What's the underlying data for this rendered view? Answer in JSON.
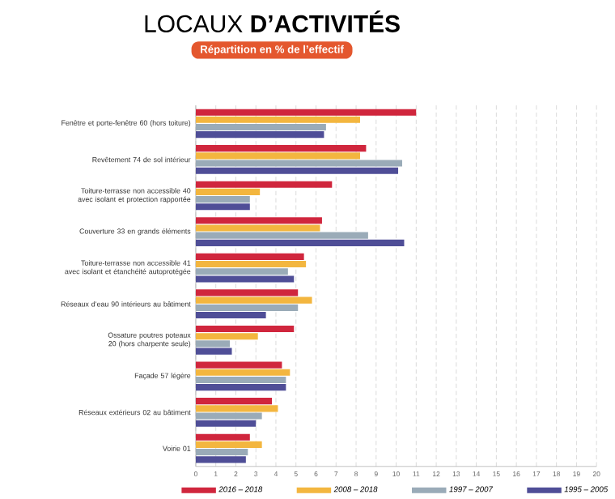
{
  "chart_data": {
    "type": "bar",
    "orientation": "horizontal",
    "title": "LOCAUX **D’ACTIVITÉS**",
    "subtitle": "Répartition en % de l’effectif",
    "categories": [
      "Fenêtre et porte-fenêtre 60 (hors toiture)",
      "Revêtement 74 de sol intérieur",
      "Toiture-terrasse non accessible 40 avec isolant et protection rapportée",
      "Couverture 33 en grands éléments",
      "Toiture-terrasse non accessible 41 avec isolant et étanchéité autoprotégée",
      "Réseaux d’eau 90 intérieurs au bâtiment",
      "Ossature poutres poteaux 20 (hors charpente seule)",
      "Façade 57 légère",
      "Réseaux extérieurs 02 au bâtiment",
      "Voirie 01"
    ],
    "series": [
      {
        "name": "2016 – 2018",
        "color": "#d0263d",
        "values": [
          11.0,
          8.5,
          6.8,
          6.3,
          5.4,
          5.1,
          4.9,
          4.3,
          3.8,
          2.7
        ]
      },
      {
        "name": "2008 – 2018",
        "color": "#f3b63f",
        "values": [
          8.2,
          8.2,
          3.2,
          6.2,
          5.5,
          5.8,
          3.1,
          4.7,
          4.1,
          3.3
        ]
      },
      {
        "name": "1997 – 2007",
        "color": "#9aabb8",
        "values": [
          6.5,
          10.3,
          2.7,
          8.6,
          4.6,
          5.1,
          1.7,
          4.5,
          3.3,
          2.6
        ]
      },
      {
        "name": "1995 – 2005",
        "color": "#4f4e97",
        "values": [
          6.4,
          10.1,
          2.7,
          10.4,
          4.9,
          3.5,
          1.8,
          4.5,
          3.0,
          2.5
        ]
      }
    ],
    "xlim": [
      0,
      20
    ],
    "xticks": [
      0,
      1,
      2,
      3,
      4,
      5,
      6,
      7,
      8,
      9,
      10,
      11,
      12,
      13,
      14,
      15,
      16,
      17,
      18,
      19,
      20
    ],
    "grid": "x",
    "legend": "bottom"
  }
}
